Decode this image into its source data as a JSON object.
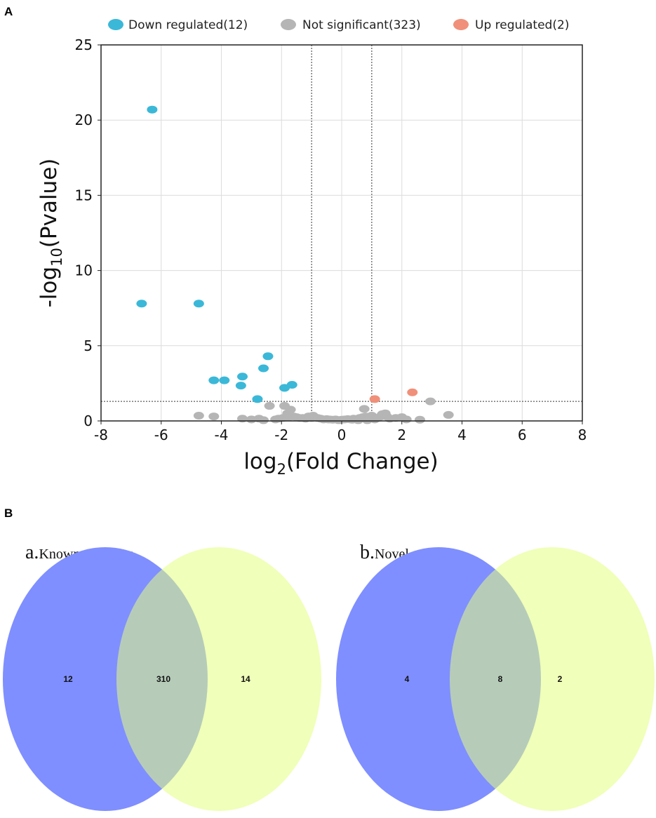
{
  "panels": {
    "a": "A",
    "b": "B"
  },
  "colors": {
    "down": "#3bb8d8",
    "ns": "#b5b5b5",
    "up": "#f0907a",
    "venn_left": "#7f8fff",
    "venn_right": "#e4ff7f"
  },
  "chart_data": [
    {
      "type": "scatter",
      "title": "",
      "xlabel": "log2(Fold Change)",
      "ylabel": "-log10(Pvalue)",
      "xlim": [
        -8,
        8
      ],
      "ylim": [
        0,
        25
      ],
      "xticks": [
        -8,
        -6,
        -4,
        -2,
        0,
        2,
        4,
        6,
        8
      ],
      "yticks": [
        0,
        5,
        10,
        15,
        20,
        25
      ],
      "grid": true,
      "legend_position": "top",
      "thresholds": {
        "log2fc": [
          -1,
          1
        ],
        "neg_log10_p": 1.3
      },
      "legend": [
        {
          "key": "down",
          "label": "Down regulated(12)"
        },
        {
          "key": "ns",
          "label": "Not significant(323)"
        },
        {
          "key": "up",
          "label": "Up regulated(2)"
        }
      ],
      "series": [
        {
          "name": "Down regulated(12)",
          "key": "down",
          "x": [
            -6.3,
            -6.65,
            -4.75,
            -4.25,
            -3.9,
            -3.3,
            -3.35,
            -2.6,
            -2.45,
            -2.8,
            -1.9,
            -1.65
          ],
          "y": [
            20.7,
            7.8,
            7.8,
            2.7,
            2.7,
            2.95,
            2.35,
            3.5,
            4.3,
            1.45,
            2.2,
            2.4
          ]
        },
        {
          "name": "Not significant(323)",
          "key": "ns",
          "x": [
            -4.75,
            -4.25,
            -3.3,
            -2.4,
            -2.75,
            -1.9,
            -1.7,
            -1.95,
            -1.8,
            -2.2,
            -2.6,
            -3.0,
            -1.6,
            -1.5,
            -1.4,
            -1.3,
            -1.2,
            -1.0,
            -0.9,
            -0.8,
            -0.7,
            -0.6,
            -0.5,
            -0.4,
            -0.3,
            -0.2,
            -0.1,
            0.0,
            0.1,
            0.2,
            0.3,
            0.4,
            0.5,
            0.6,
            0.7,
            0.8,
            0.9,
            0.75,
            1.0,
            1.2,
            1.3,
            1.35,
            1.45,
            1.6,
            1.8,
            2.0,
            2.15,
            2.6,
            2.95,
            3.55,
            -1.1,
            -0.95,
            0.55,
            0.35,
            -0.45,
            1.1,
            1.5,
            -1.75,
            -2.1,
            0.85
          ],
          "y": [
            0.35,
            0.3,
            0.15,
            1.0,
            0.15,
            1.0,
            0.75,
            0.2,
            0.5,
            0.1,
            0.05,
            0.1,
            0.3,
            0.25,
            0.2,
            0.2,
            0.15,
            0.2,
            0.25,
            0.2,
            0.15,
            0.1,
            0.12,
            0.1,
            0.08,
            0.1,
            0.05,
            0.08,
            0.1,
            0.12,
            0.1,
            0.15,
            0.12,
            0.2,
            0.25,
            0.3,
            0.2,
            0.8,
            0.35,
            0.2,
            0.3,
            0.45,
            0.5,
            0.15,
            0.2,
            0.25,
            0.1,
            0.08,
            1.3,
            0.4,
            0.3,
            0.35,
            0.05,
            0.08,
            0.1,
            0.1,
            0.3,
            0.25,
            0.15,
            0.05
          ]
        },
        {
          "name": "Up regulated(2)",
          "key": "up",
          "x": [
            1.1,
            2.35
          ],
          "y": [
            1.45,
            1.9
          ]
        }
      ]
    },
    {
      "type": "venn",
      "title_prefix": "a.",
      "title_rest": "Known miRNAs",
      "values": {
        "left_only": "12",
        "both": "310",
        "right_only": "14"
      }
    },
    {
      "type": "venn",
      "title_prefix": "b.",
      "title_rest": "Novel miRNAs",
      "values": {
        "left_only": "4",
        "both": "8",
        "right_only": "2"
      }
    }
  ]
}
